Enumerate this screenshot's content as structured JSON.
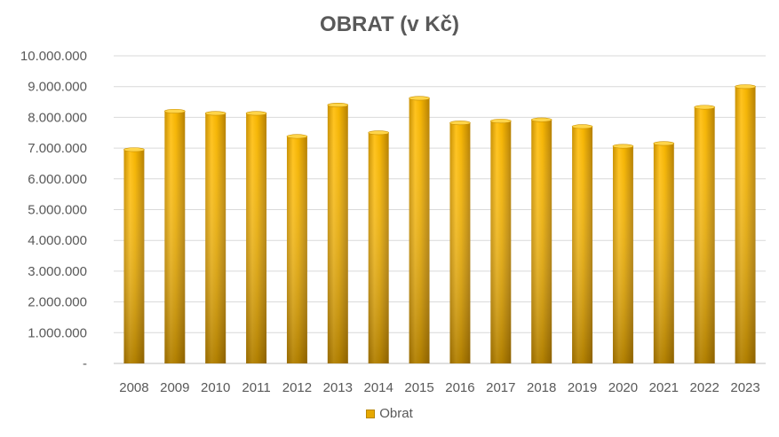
{
  "chart_data": {
    "type": "bar",
    "title": "OBRAT (v Kč)",
    "xlabel": "",
    "ylabel": "",
    "categories": [
      "2008",
      "2009",
      "2010",
      "2011",
      "2012",
      "2013",
      "2014",
      "2015",
      "2016",
      "2017",
      "2018",
      "2019",
      "2020",
      "2021",
      "2022",
      "2023"
    ],
    "series": [
      {
        "name": "Obrat",
        "color": "#f2b600",
        "values": [
          6950000,
          8200000,
          8130000,
          8130000,
          7380000,
          8400000,
          7500000,
          8620000,
          7820000,
          7880000,
          7920000,
          7700000,
          7060000,
          7150000,
          8330000,
          9000000
        ]
      }
    ],
    "ylim": [
      0,
      10000000
    ],
    "y_ticks": [
      0,
      1000000,
      2000000,
      3000000,
      4000000,
      5000000,
      6000000,
      7000000,
      8000000,
      9000000,
      10000000
    ],
    "y_tick_labels": [
      "-",
      "1.000.000",
      "2.000.000",
      "3.000.000",
      "4.000.000",
      "5.000.000",
      "6.000.000",
      "7.000.000",
      "8.000.000",
      "9.000.000",
      "10.000.000"
    ],
    "grid": true,
    "legend_position": "bottom"
  }
}
